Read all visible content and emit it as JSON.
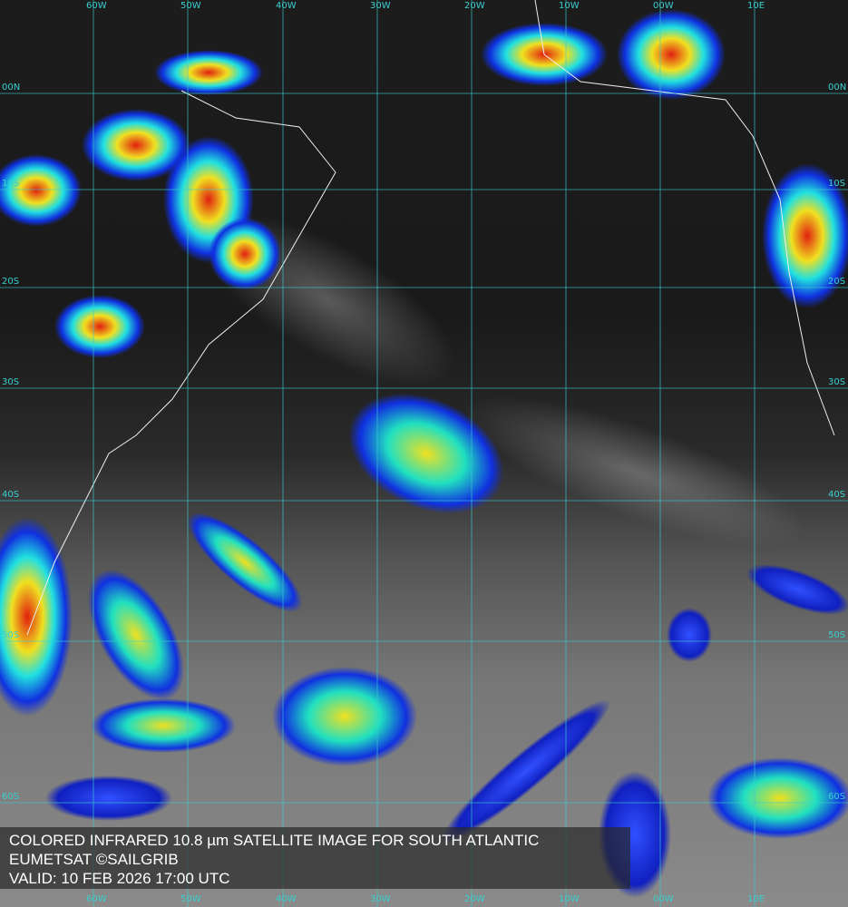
{
  "caption": {
    "line1": "COLORED INFRARED 10.8 µm SATELLITE IMAGE FOR SOUTH ATLANTIC",
    "line2": "EUMETSAT ©SAILGRIB",
    "line3": "VALID:  10 FEB 2026 17:00 UTC"
  },
  "grid": {
    "longitudes": [
      "60W",
      "50W",
      "40W",
      "30W",
      "20W",
      "10W",
      "00W",
      "10E"
    ],
    "latitudes": [
      "00N",
      "10S",
      "20S",
      "30S",
      "40S",
      "50S",
      "60S"
    ],
    "grid_color": "#39d0d0"
  },
  "colors": {
    "cold_cloud_red": "#e02010",
    "yellow": "#f0e020",
    "cyan": "#20e0e0",
    "blue": "#1030e0"
  }
}
